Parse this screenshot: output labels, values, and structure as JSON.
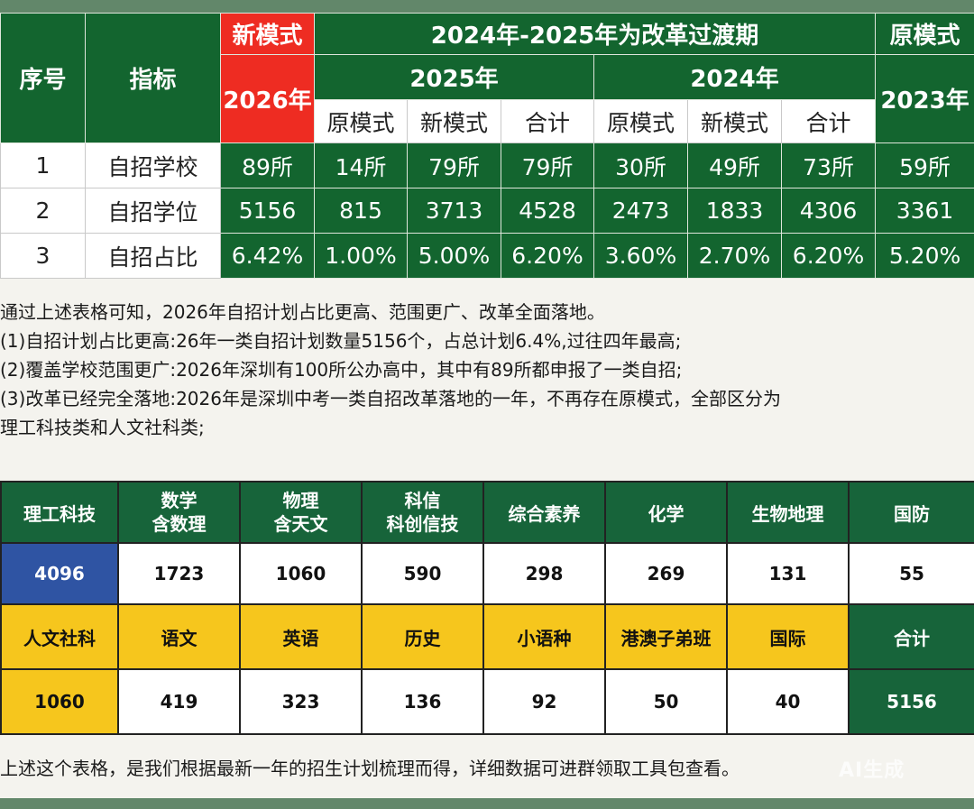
{
  "table1": {
    "header": {
      "seq": "序号",
      "indicator": "指标",
      "new_mode_label": "新模式",
      "transition_label": "2024年-2025年为改革过渡期",
      "orig_mode_label": "原模式",
      "y2026": "2026年",
      "y2025": "2025年",
      "y2024": "2024年",
      "y2023": "2023年",
      "sub": [
        "原模式",
        "新模式",
        "合计",
        "原模式",
        "新模式",
        "合计"
      ]
    },
    "rows": [
      {
        "seq": "1",
        "name": "自招学校",
        "values": [
          "89所",
          "14所",
          "79所",
          "79所",
          "30所",
          "49所",
          "73所",
          "59所"
        ]
      },
      {
        "seq": "2",
        "name": "自招学位",
        "values": [
          "5156",
          "815",
          "3713",
          "4528",
          "2473",
          "1833",
          "4306",
          "3361"
        ]
      },
      {
        "seq": "3",
        "name": "自招占比",
        "values": [
          "6.42%",
          "1.00%",
          "5.00%",
          "6.20%",
          "3.60%",
          "2.70%",
          "6.20%",
          "5.20%"
        ]
      }
    ]
  },
  "text": {
    "lines": [
      "通过上述表格可知，2026年自招计划占比更高、范围更广、改革全面落地。",
      "(1)自招计划占比更高:26年一类自招计划数量5156个，占总计划6.4%,过往四年最高;",
      "(2)覆盖学校范围更广:2026年深圳有100所公办高中，其中有89所都申报了一类自招;",
      "(3)改革已经完全落地:2026年是深圳中考一类自招改革落地的一年，不再存在原模式，全部区分为",
      "理工科技类和人文社科类;"
    ],
    "footer": "上述这个表格，是我们根据最新一年的招生计划梳理而得，详细数据可进群领取工具包查看。",
    "watermark": "AI生成"
  },
  "table2": {
    "row1": [
      "理工科技",
      "数学",
      "含数理",
      "物理",
      "含天文",
      "科信",
      "科创信技",
      "综合素养",
      "化学",
      "生物地理",
      "国防"
    ],
    "row2": [
      "4096",
      "1723",
      "1060",
      "590",
      "298",
      "269",
      "131",
      "55"
    ],
    "row3": [
      "人文社科",
      "语文",
      "英语",
      "历史",
      "小语种",
      "港澳子弟班",
      "国际",
      "合计"
    ],
    "row4": [
      "1060",
      "419",
      "323",
      "136",
      "92",
      "50",
      "40",
      "5156"
    ]
  }
}
